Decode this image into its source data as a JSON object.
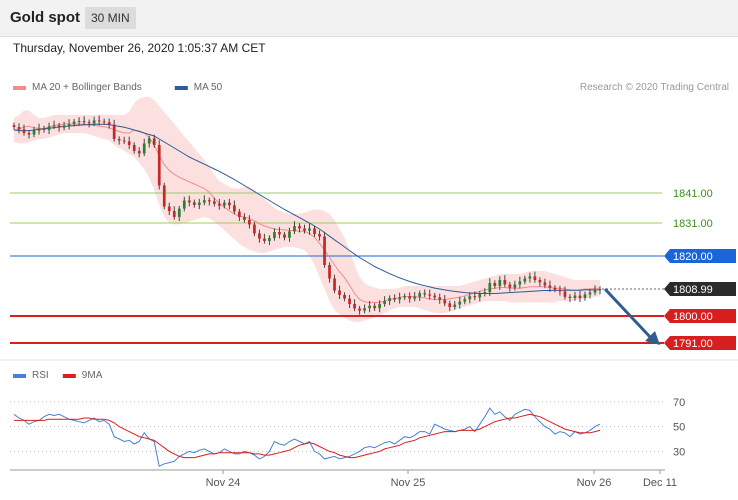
{
  "header": {
    "title": "Gold spot",
    "timeframe": "30 MIN",
    "datetime": "Thursday, November 26, 2020 1:05:37 AM CET"
  },
  "colors": {
    "candle_up": "#2e7d32",
    "candle_down": "#c62828",
    "bollinger_fill": "#fbd5d5",
    "ma20": "#f28b8b",
    "ma50": "#2c5a9a",
    "resistance": "#9ccc65",
    "pivot": "#1a66d9",
    "support": "#d61f1f",
    "current": "#2b2b2b",
    "rsi": "#4a7fd4",
    "rsi_ma": "#d61f1f",
    "arrow": "#2f5d8f"
  },
  "chart_data": [
    {
      "type": "line",
      "name": "price-chart",
      "legend": [
        {
          "label": "MA 20 + Bollinger Bands",
          "color": "#f28b8b"
        },
        {
          "label": "MA 50",
          "color": "#2c5a9a"
        }
      ],
      "credit": "Research © 2020 Trading Central",
      "x_ticks": [
        "Nov 24",
        "Nov 25",
        "Nov 26",
        "Dec 11"
      ],
      "ylim": [
        1787,
        1872
      ],
      "levels": [
        {
          "value": 1841.0,
          "label": "1841.00",
          "kind": "resistance"
        },
        {
          "value": 1831.0,
          "label": "1831.00",
          "kind": "resistance"
        },
        {
          "value": 1820.0,
          "label": "1820.00",
          "kind": "pivot"
        },
        {
          "value": 1808.99,
          "label": "1808.99",
          "kind": "current"
        },
        {
          "value": 1800.0,
          "label": "1800.00",
          "kind": "support"
        },
        {
          "value": 1791.0,
          "label": "1791.00",
          "kind": "support"
        }
      ],
      "close": [
        1863.0,
        1862.2,
        1861.0,
        1860.5,
        1861.8,
        1862.5,
        1862.0,
        1863.2,
        1863.5,
        1862.8,
        1863.5,
        1864.0,
        1864.8,
        1865.0,
        1864.6,
        1864.2,
        1865.2,
        1864.9,
        1864.6,
        1863.8,
        1859.0,
        1858.5,
        1858.2,
        1857.0,
        1855.0,
        1854.2,
        1857.5,
        1859.2,
        1857.0,
        1843.5,
        1836.5,
        1835.0,
        1833.0,
        1835.8,
        1838.5,
        1837.9,
        1837.0,
        1837.8,
        1838.6,
        1838.2,
        1837.4,
        1836.8,
        1837.8,
        1836.9,
        1834.8,
        1833.0,
        1832.0,
        1830.5,
        1827.5,
        1825.8,
        1825.0,
        1826.0,
        1828.0,
        1827.2,
        1826.1,
        1828.2,
        1830.0,
        1829.2,
        1828.4,
        1829.2,
        1827.3,
        1826.5,
        1817.0,
        1812.5,
        1808.5,
        1807.0,
        1805.8,
        1804.0,
        1802.5,
        1801.8,
        1802.6,
        1803.4,
        1802.6,
        1804.0,
        1805.0,
        1806.0,
        1805.5,
        1806.2,
        1806.6,
        1805.8,
        1806.4,
        1807.6,
        1807.2,
        1806.8,
        1806.2,
        1805.4,
        1804.2,
        1803.0,
        1803.8,
        1804.8,
        1805.6,
        1806.6,
        1806.2,
        1807.4,
        1808.0,
        1811.0,
        1810.0,
        1812.0,
        1810.5,
        1809.4,
        1810.5,
        1811.5,
        1812.5,
        1813.2,
        1812.0,
        1811.2,
        1810.2,
        1809.4,
        1808.8,
        1808.2,
        1806.4,
        1806.0,
        1806.8,
        1806.0,
        1807.2,
        1807.8,
        1808.6,
        1809.0
      ],
      "ma50": [
        1862.0,
        1861.8,
        1861.8,
        1861.8,
        1862.0,
        1862.2,
        1862.4,
        1862.6,
        1862.8,
        1863.0,
        1863.2,
        1863.3,
        1863.5,
        1863.6,
        1863.7,
        1863.8,
        1863.9,
        1863.9,
        1863.9,
        1863.8,
        1863.5,
        1863.2,
        1862.9,
        1862.5,
        1862.0,
        1861.5,
        1861.0,
        1860.5,
        1860.0,
        1859.0,
        1858.0,
        1857.0,
        1856.0,
        1855.0,
        1854.0,
        1853.0,
        1852.2,
        1851.4,
        1850.6,
        1849.8,
        1849.0,
        1848.2,
        1847.3,
        1846.4,
        1845.5,
        1844.5,
        1843.5,
        1842.5,
        1841.5,
        1840.5,
        1839.5,
        1838.5,
        1837.5,
        1836.5,
        1835.5,
        1834.6,
        1833.7,
        1832.8,
        1831.9,
        1831.0,
        1830.0,
        1829.0,
        1827.8,
        1826.6,
        1825.4,
        1824.2,
        1823.0,
        1821.8,
        1820.6,
        1819.5,
        1818.5,
        1817.5,
        1816.5,
        1815.7,
        1814.9,
        1814.1,
        1813.4,
        1812.7,
        1812.1,
        1811.5,
        1811.0,
        1810.5,
        1810.1,
        1809.7,
        1809.3,
        1809.0,
        1808.7,
        1808.4,
        1808.2,
        1808.0,
        1807.8,
        1807.7,
        1807.6,
        1807.5,
        1807.5,
        1807.5,
        1807.5,
        1807.6,
        1807.7,
        1807.8,
        1807.9,
        1808.0,
        1808.1,
        1808.2,
        1808.3,
        1808.4,
        1808.5,
        1808.5,
        1808.6,
        1808.6,
        1808.6,
        1808.6,
        1808.6,
        1808.6,
        1808.7,
        1808.7,
        1808.7,
        1808.8
      ],
      "bb_upper": [
        1866.0,
        1867.0,
        1868.5,
        1868.5,
        1867.0,
        1866.0,
        1866.0,
        1866.5,
        1867.0,
        1867.0,
        1867.0,
        1867.0,
        1867.0,
        1867.0,
        1867.0,
        1867.0,
        1867.0,
        1867.2,
        1867.2,
        1867.0,
        1867.0,
        1867.0,
        1867.0,
        1868.0,
        1871.0,
        1872.5,
        1873.0,
        1873.0,
        1872.0,
        1870.0,
        1868.0,
        1866.0,
        1864.0,
        1862.0,
        1860.0,
        1858.0,
        1856.0,
        1854.0,
        1852.0,
        1850.0,
        1847.0,
        1845.0,
        1844.0,
        1843.0,
        1842.5,
        1842.5,
        1843.0,
        1843.0,
        1842.0,
        1840.5,
        1839.0,
        1837.5,
        1836.0,
        1835.0,
        1834.5,
        1834.0,
        1834.0,
        1834.0,
        1834.5,
        1835.0,
        1835.5,
        1835.5,
        1835.0,
        1834.0,
        1832.0,
        1829.0,
        1826.0,
        1822.0,
        1817.0,
        1813.0,
        1811.0,
        1810.0,
        1809.5,
        1809.0,
        1809.0,
        1809.0,
        1809.0,
        1809.5,
        1810.0,
        1810.0,
        1810.0,
        1810.0,
        1810.0,
        1810.0,
        1810.0,
        1810.0,
        1810.0,
        1810.0,
        1810.0,
        1810.0,
        1810.5,
        1811.0,
        1811.5,
        1812.0,
        1812.5,
        1813.0,
        1813.5,
        1814.0,
        1814.0,
        1814.0,
        1814.0,
        1814.0,
        1814.5,
        1815.0,
        1815.0,
        1815.0,
        1815.0,
        1814.5,
        1814.0,
        1813.5,
        1813.0,
        1812.5,
        1812.0,
        1812.0,
        1812.0,
        1812.0,
        1812.0,
        1812.0
      ],
      "bb_lower": [
        1858.0,
        1857.5,
        1857.5,
        1858.0,
        1858.5,
        1859.0,
        1859.0,
        1859.5,
        1860.0,
        1860.5,
        1861.0,
        1861.0,
        1861.0,
        1861.0,
        1861.0,
        1860.5,
        1860.0,
        1859.5,
        1859.0,
        1858.5,
        1857.0,
        1856.0,
        1855.0,
        1854.0,
        1853.0,
        1851.0,
        1849.0,
        1846.0,
        1842.0,
        1837.0,
        1833.0,
        1831.0,
        1830.5,
        1830.5,
        1831.0,
        1831.5,
        1832.0,
        1832.5,
        1833.0,
        1832.5,
        1831.5,
        1830.0,
        1828.5,
        1827.0,
        1825.5,
        1824.0,
        1823.0,
        1822.0,
        1821.5,
        1821.0,
        1821.0,
        1821.5,
        1822.0,
        1822.5,
        1823.0,
        1823.0,
        1823.0,
        1822.5,
        1822.0,
        1820.0,
        1817.0,
        1813.0,
        1809.0,
        1805.0,
        1802.0,
        1800.5,
        1799.5,
        1798.5,
        1798.0,
        1798.0,
        1798.5,
        1799.0,
        1799.5,
        1800.0,
        1801.0,
        1802.0,
        1802.5,
        1803.0,
        1803.0,
        1803.0,
        1803.0,
        1802.5,
        1802.0,
        1801.5,
        1801.0,
        1801.0,
        1801.0,
        1801.5,
        1802.0,
        1802.5,
        1803.0,
        1803.5,
        1804.0,
        1804.5,
        1805.0,
        1805.0,
        1805.0,
        1805.0,
        1805.0,
        1804.5,
        1804.5,
        1804.5,
        1804.5,
        1804.5,
        1804.5,
        1804.5,
        1804.5,
        1804.5,
        1804.5,
        1805.0,
        1805.0,
        1805.0,
        1805.0,
        1805.5,
        1806.0,
        1806.0,
        1806.5,
        1806.5
      ]
    },
    {
      "type": "line",
      "name": "rsi-chart",
      "legend": [
        {
          "label": "RSI",
          "color": "#4a7fd4"
        },
        {
          "label": "9MA",
          "color": "#d61f1f"
        }
      ],
      "y_ticks": [
        70,
        50,
        30
      ],
      "ylim": [
        15,
        82
      ],
      "rsi": [
        60,
        57,
        55,
        52,
        54,
        55,
        58,
        60,
        59,
        60,
        58,
        56,
        55,
        54,
        53,
        55,
        57,
        54,
        55,
        52,
        42,
        40,
        38,
        39,
        36,
        38,
        45,
        40,
        38,
        18,
        20,
        21,
        22,
        26,
        28,
        30,
        29,
        31,
        32,
        30,
        28,
        29,
        32,
        30,
        28,
        28,
        30,
        29,
        27,
        24,
        26,
        30,
        38,
        36,
        35,
        38,
        40,
        38,
        36,
        38,
        30,
        28,
        24,
        25,
        26,
        24,
        25,
        26,
        28,
        30,
        33,
        34,
        33,
        35,
        37,
        38,
        36,
        39,
        42,
        41,
        43,
        46,
        46,
        44,
        52,
        50,
        48,
        47,
        46,
        47,
        48,
        50,
        46,
        52,
        58,
        65,
        60,
        62,
        58,
        55,
        60,
        62,
        64,
        63,
        58,
        54,
        50,
        48,
        44,
        46,
        45,
        42,
        46,
        44,
        45,
        47,
        50,
        52
      ],
      "rsi_ma": [
        55,
        55,
        55,
        55,
        55,
        55,
        55,
        56,
        56,
        56,
        56,
        56,
        56,
        56,
        57,
        57,
        56,
        56,
        56,
        55,
        53,
        50,
        48,
        46,
        44,
        42,
        41,
        40,
        39,
        36,
        33,
        30,
        28,
        26,
        25,
        25,
        25,
        26,
        27,
        28,
        28,
        29,
        29,
        29,
        29,
        29,
        29,
        29,
        28,
        28,
        27,
        27,
        28,
        29,
        30,
        31,
        33,
        35,
        36,
        37,
        36,
        34,
        32,
        30,
        29,
        27,
        26,
        25,
        25,
        26,
        27,
        28,
        29,
        30,
        32,
        33,
        34,
        35,
        37,
        38,
        39,
        41,
        42,
        43,
        44,
        45,
        46,
        46,
        46,
        47,
        47,
        47,
        47,
        48,
        50,
        52,
        54,
        55,
        56,
        57,
        57,
        58,
        59,
        60,
        59,
        58,
        56,
        54,
        52,
        50,
        48,
        47,
        46,
        45,
        45,
        45,
        46,
        47
      ]
    }
  ]
}
